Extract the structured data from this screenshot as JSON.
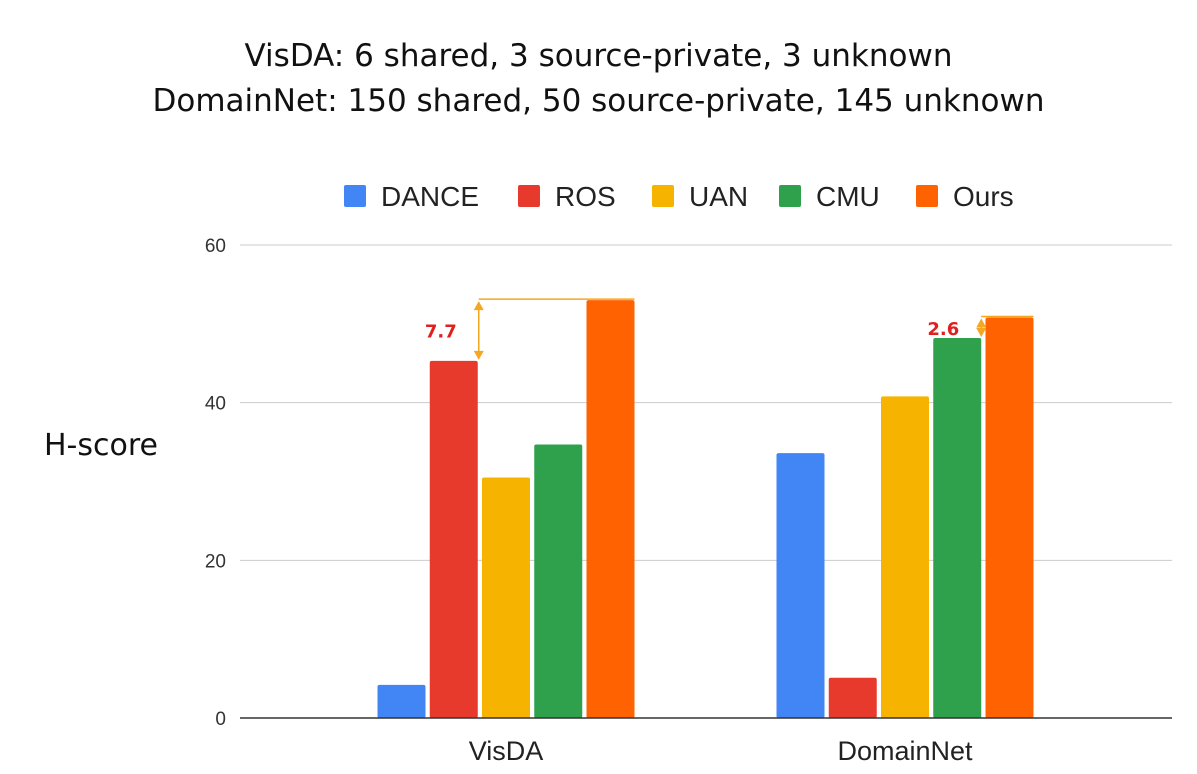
{
  "chart_data": {
    "type": "bar",
    "title_lines": [
      "VisDA: 6 shared, 3 source-private, 3 unknown",
      "DomainNet: 150 shared, 50 source-private, 145 unknown"
    ],
    "xlabel": "",
    "ylabel": "H-score",
    "ylim": [
      0,
      60
    ],
    "yticks": [
      0,
      20,
      40,
      60
    ],
    "grid": true,
    "legend_position": "top",
    "categories": [
      "VisDA",
      "DomainNet"
    ],
    "series": [
      {
        "name": "DANCE",
        "color": "#4285f4",
        "values": [
          4.2,
          33.6
        ]
      },
      {
        "name": "ROS",
        "color": "#e8392d",
        "values": [
          45.3,
          5.1
        ]
      },
      {
        "name": "UAN",
        "color": "#f6b400",
        "values": [
          30.5,
          40.8
        ]
      },
      {
        "name": "CMU",
        "color": "#2fa04b",
        "values": [
          34.7,
          48.2
        ]
      },
      {
        "name": "Ours",
        "color": "#ff6200",
        "values": [
          53.0,
          50.8
        ]
      }
    ],
    "annotations": [
      {
        "label": "7.7",
        "category": "VisDA",
        "from_series": "ROS",
        "to_series": "Ours",
        "color": "#f5a623"
      },
      {
        "label": "2.6",
        "category": "DomainNet",
        "from_series": "CMU",
        "to_series": "Ours",
        "color": "#f5a623"
      }
    ]
  }
}
